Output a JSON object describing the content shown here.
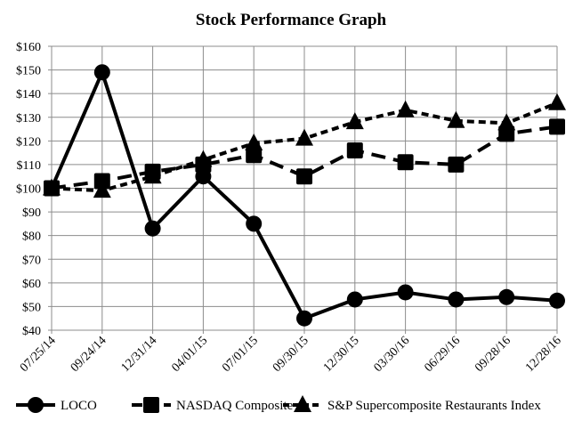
{
  "chart_data": {
    "type": "line",
    "title": "Stock Performance Graph",
    "xlabel": "",
    "ylabel": "",
    "ylim": [
      40,
      160
    ],
    "yticks": [
      40,
      50,
      60,
      70,
      80,
      90,
      100,
      110,
      120,
      130,
      140,
      150,
      160
    ],
    "ytick_labels": [
      "$40",
      "$50",
      "$60",
      "$70",
      "$80",
      "$90",
      "$100",
      "$110",
      "$120",
      "$130",
      "$140",
      "$150",
      "$160"
    ],
    "grid": true,
    "legend_position": "bottom",
    "categories": [
      "07/25/14",
      "09/24/14",
      "12/31/14",
      "04/01/15",
      "07/01/15",
      "09/30/15",
      "12/30/15",
      "03/30/16",
      "06/29/16",
      "09/28/16",
      "12/28/16"
    ],
    "series": [
      {
        "name": "LOCO",
        "marker": "circle",
        "dash": "solid",
        "values": [
          100,
          149,
          83,
          105,
          85,
          45,
          53,
          56,
          53,
          54,
          52.5
        ]
      },
      {
        "name": "NASDAQ Composite",
        "marker": "square",
        "dash": "long-dash",
        "values": [
          100,
          103,
          107,
          110,
          114,
          105,
          116,
          111,
          110,
          123,
          126
        ]
      },
      {
        "name": "S&P Supercomposite Restaurants Index",
        "marker": "triangle",
        "dash": "short-dash",
        "values": [
          100,
          99,
          105,
          112,
          119,
          121,
          128,
          133,
          128.5,
          127.5,
          136
        ]
      }
    ]
  }
}
